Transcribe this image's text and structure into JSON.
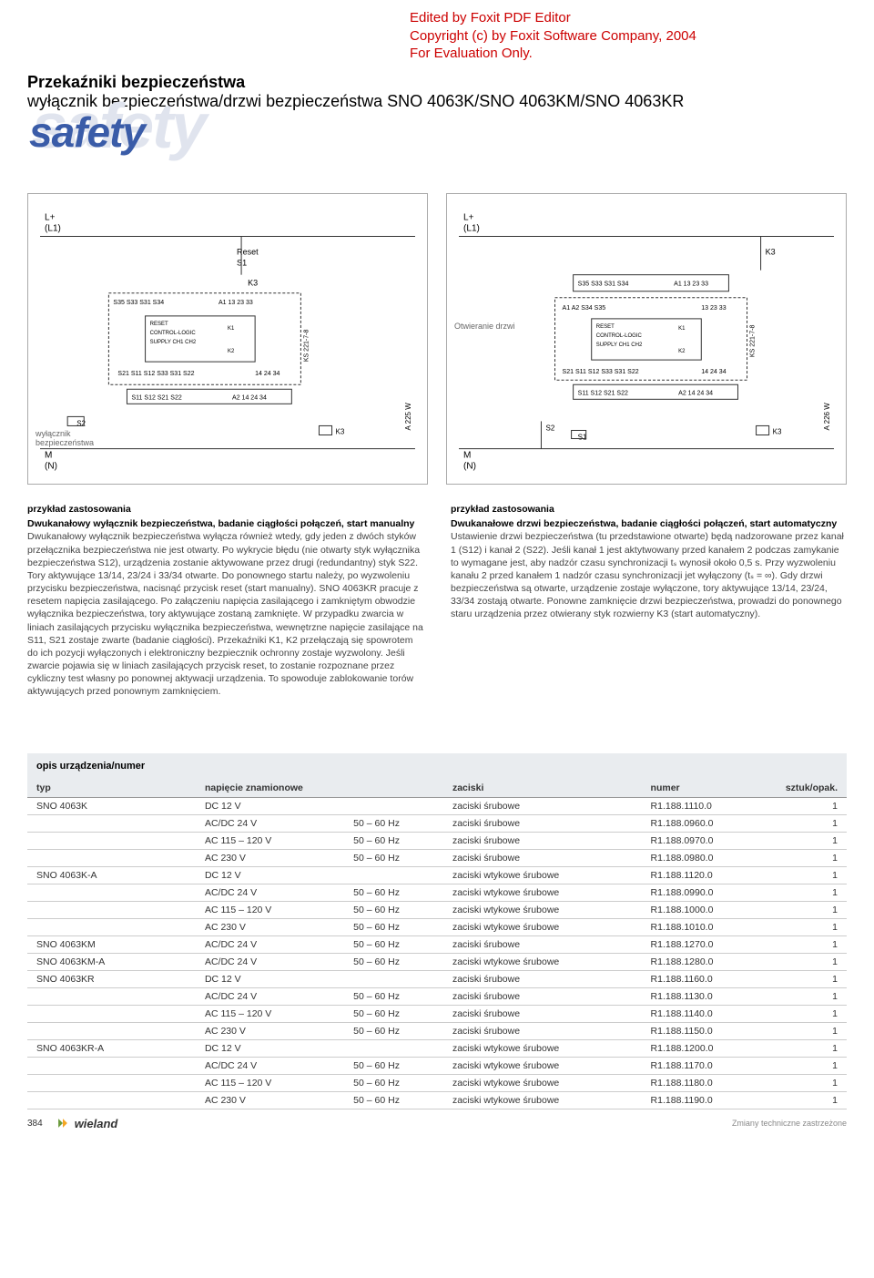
{
  "watermark": {
    "line1": "Edited by Foxit PDF Editor",
    "line2": "Copyright (c) by Foxit Software Company, 2004",
    "line3": "For Evaluation Only.",
    "color": "#c00000"
  },
  "header": {
    "line1": "Przekaźniki bezpieczeństwa",
    "line2": "wyłącznik bezpieczeństwa/drzwi bezpieczeństwa SNO 4063K/SNO 4063KM/SNO 4063KR",
    "logo_text": "safety",
    "logo_fg_color": "#3a5ca8",
    "logo_bg_color": "#e0e4ee"
  },
  "diagrams": {
    "left": {
      "top_left": "L+\n(L1)",
      "bottom_left": "M\n(N)",
      "side_label": "wyłącznik bezpieczeństwa",
      "ref_right": "A 225 W",
      "terminals_top": "S35 S33 S31 S34    A1 13 23 33",
      "terminals_bot": "S11 S12 S21 S22    A2 14 24 34",
      "inner": "RESET  CONTROL-LOGIC  CH1 CH2  SUPPLY  K1 K2",
      "box_ref": "KS 221-7-8",
      "reset_label": "Reset S1",
      "k3": "K3",
      "s2": "S2"
    },
    "right": {
      "top_left": "L+\n(L1)",
      "bottom_left": "M\n(N)",
      "side_label": "Otwieranie drzwi",
      "ref_right": "A 226 W",
      "terminals_top": "S35 S33 S31 S34    A1 13 23 33",
      "terminals_bot": "S11 S12 S21 S22    A2 14 24 34",
      "inner": "RESET  CONTROL-LOGIC  CH1 CH2  SUPPLY  K1 K2",
      "box_ref": "KS 221-7-8",
      "k3": "K3",
      "s1": "S1",
      "s2": "S2"
    }
  },
  "examples": {
    "left": {
      "heading": "przykład zastosowania",
      "sub": "Dwukanałowy wyłącznik bezpieczeństwa, badanie ciągłości połączeń, start manualny",
      "body": "Dwukanałowy wyłącznik bezpieczeństwa wyłącza również wtedy, gdy jeden z dwóch styków przełącznika bezpieczeństwa nie jest otwarty. Po wykrycie błędu (nie otwarty styk wyłącznika bezpieczeństwa S12), urządzenia zostanie aktywowane przez drugi (redundantny) styk S22. Tory aktywujące 13/14, 23/24 i 33/34 otwarte. Do ponownego startu należy, po wyzwoleniu przycisku bezpieczeństwa, nacisnąć przycisk reset (start manualny). SNO 4063KR pracuje z resetem napięcia zasilającego. Po załączeniu napięcia zasilającego i zamkniętym obwodzie wyłącznika bezpieczeństwa, tory aktywujące zostaną zamknięte. W przypadku zwarcia w liniach zasilających przycisku wyłącznika bezpieczeństwa, wewnętrzne napięcie zasilające na S11, S21 zostaje zwarte (badanie ciągłości). Przekaźniki K1, K2 przełączają się spowrotem do ich pozycji wyłączonych i elektroniczny bezpiecznik ochronny zostaje wyzwolony. Jeśli zwarcie pojawia się w liniach zasilających przycisk reset, to zostanie rozpoznane przez cykliczny test własny po ponownej aktywacji urządzenia. To spowoduje zablokowanie torów aktywujących przed ponownym zamknięciem."
    },
    "right": {
      "heading": "przykład zastosowania",
      "sub": "Dwukanałowe drzwi bezpieczeństwa, badanie ciągłości połączeń, start automatyczny",
      "body": "Ustawienie drzwi bezpieczeństwa (tu przedstawione otwarte) będą nadzorowane przez kanał 1 (S12) i kanał 2 (S22). Jeśli kanał 1 jest aktytwowany przed kanałem 2 podczas zamykanie to wymagane jest, aby nadzór czasu synchronizacji tₛ wynosił około 0,5 s. Przy wyzwoleniu kanału 2 przed kanałem 1 nadzór czasu synchronizacji jet wyłączony (tₛ = ∞). Gdy drzwi bezpieczeństwa są otwarte, urządzenie zostaje wyłączone, tory aktywujące 13/14, 23/24, 33/34 zostają otwarte. Ponowne zamknięcie drzwi bezpieczeństwa, prowadzi do ponownego staru urządzenia przez otwierany styk rozwierny K3 (start automatyczny)."
    }
  },
  "table": {
    "section_title": "opis urządzenia/numer",
    "columns": [
      "typ",
      "napięcie znamionowe",
      "",
      "zaciski",
      "numer",
      "sztuk/opak."
    ],
    "rows": [
      [
        "SNO 4063K",
        "DC 12 V",
        "",
        "zaciski śrubowe",
        "R1.188.1110.0",
        "1"
      ],
      [
        "",
        "AC/DC 24 V",
        "50 – 60 Hz",
        "zaciski śrubowe",
        "R1.188.0960.0",
        "1"
      ],
      [
        "",
        "AC 115 – 120 V",
        "50 – 60 Hz",
        "zaciski śrubowe",
        "R1.188.0970.0",
        "1"
      ],
      [
        "",
        "AC 230 V",
        "50 – 60 Hz",
        "zaciski śrubowe",
        "R1.188.0980.0",
        "1"
      ],
      [
        "SNO 4063K-A",
        "DC 12 V",
        "",
        "zaciski wtykowe śrubowe",
        "R1.188.1120.0",
        "1"
      ],
      [
        "",
        "AC/DC 24 V",
        "50 – 60 Hz",
        "zaciski wtykowe śrubowe",
        "R1.188.0990.0",
        "1"
      ],
      [
        "",
        "AC 115 – 120 V",
        "50 – 60 Hz",
        "zaciski wtykowe śrubowe",
        "R1.188.1000.0",
        "1"
      ],
      [
        "",
        "AC 230 V",
        "50 – 60 Hz",
        "zaciski wtykowe śrubowe",
        "R1.188.1010.0",
        "1"
      ],
      [
        "SNO 4063KM",
        "AC/DC 24 V",
        "50 – 60 Hz",
        "zaciski śrubowe",
        "R1.188.1270.0",
        "1"
      ],
      [
        "SNO 4063KM-A",
        "AC/DC 24 V",
        "50 – 60 Hz",
        "zaciski wtykowe śrubowe",
        "R1.188.1280.0",
        "1"
      ],
      [
        "SNO 4063KR",
        "DC 12 V",
        "",
        "zaciski śrubowe",
        "R1.188.1160.0",
        "1"
      ],
      [
        "",
        "AC/DC 24 V",
        "50 – 60 Hz",
        "zaciski śrubowe",
        "R1.188.1130.0",
        "1"
      ],
      [
        "",
        "AC 115 – 120 V",
        "50 – 60 Hz",
        "zaciski śrubowe",
        "R1.188.1140.0",
        "1"
      ],
      [
        "",
        "AC 230 V",
        "50 – 60 Hz",
        "zaciski śrubowe",
        "R1.188.1150.0",
        "1"
      ],
      [
        "SNO 4063KR-A",
        "DC 12 V",
        "",
        "zaciski wtykowe śrubowe",
        "R1.188.1200.0",
        "1"
      ],
      [
        "",
        "AC/DC 24 V",
        "50 – 60 Hz",
        "zaciski wtykowe śrubowe",
        "R1.188.1170.0",
        "1"
      ],
      [
        "",
        "AC 115 – 120 V",
        "50 – 60 Hz",
        "zaciski wtykowe śrubowe",
        "R1.188.1180.0",
        "1"
      ],
      [
        "",
        "AC 230 V",
        "50 – 60 Hz",
        "zaciski wtykowe śrubowe",
        "R1.188.1190.0",
        "1"
      ]
    ]
  },
  "footer": {
    "page": "384",
    "brand": "wieland",
    "note": "Zmiany techniczne zastrzeżone"
  }
}
